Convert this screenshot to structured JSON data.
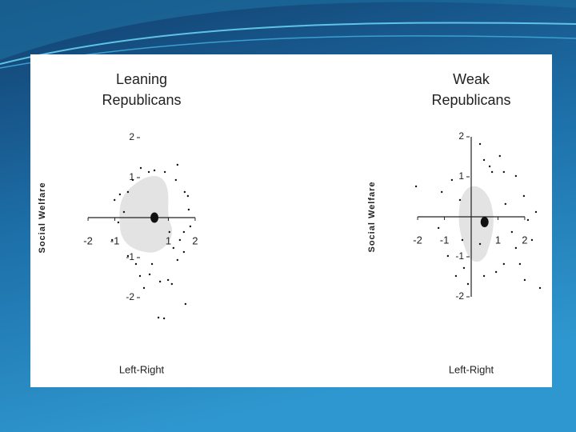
{
  "chart_data": [
    {
      "type": "scatter",
      "title": "Leaning Republicans",
      "x_label": "Left-Right",
      "y_label": "Social Welfare",
      "xlim": [
        -2.6,
        2.6
      ],
      "ylim": [
        -2.6,
        2.6
      ],
      "xticks": [
        -2,
        -1,
        1,
        2
      ],
      "yticks": [
        2,
        1,
        -1,
        -2
      ],
      "vertical_axis_line": false,
      "color": "#111111",
      "x": [
        -0.81,
        -0.51,
        0.27,
        0.48,
        0.87,
        1.34,
        1.61,
        1.76,
        1.82,
        1.43,
        1.19,
        1.58,
        -0.51,
        -0.06,
        0.3,
        0.69,
        0.99,
        1.13,
        0.09,
        1.64,
        0.63,
        0.84,
        -0.21,
        -0.66,
        -0.87,
        -1.1,
        1.58,
        1.04,
        -0.33,
        1.28,
        0.39,
        1.34,
        -0.03,
        -1.01,
        1.73
      ],
      "y": [
        0.58,
        0.64,
        1.14,
        1.18,
        1.14,
        1.32,
        0.64,
        0.2,
        -0.22,
        -0.56,
        -0.76,
        -0.86,
        -0.96,
        -1.46,
        -1.42,
        -1.6,
        -1.56,
        -1.66,
        -1.76,
        -2.16,
        -2.5,
        -2.52,
        -1.16,
        0.14,
        -0.12,
        -0.56,
        -0.36,
        -0.36,
        0.94,
        0.94,
        -1.16,
        -1.06,
        1.24,
        0.44,
        0.54
      ],
      "mean": {
        "x": 0.48,
        "y": 0
      }
    },
    {
      "type": "scatter",
      "title": "Weak Republicans",
      "x_label": "Left-Right",
      "y_label": "Social Welfare",
      "xlim": [
        -2.6,
        2.6
      ],
      "ylim": [
        -2.6,
        2.6
      ],
      "xticks": [
        -2,
        -1,
        1,
        2
      ],
      "yticks": [
        2,
        1,
        -1,
        -2
      ],
      "vertical_axis_line": true,
      "color": "#111111",
      "x": [
        -2.06,
        0.48,
        0.69,
        1.07,
        1.22,
        1.67,
        1.97,
        2.42,
        2.12,
        1.67,
        1.82,
        2.0,
        2.57,
        1.22,
        0.93,
        0.48,
        -0.12,
        -0.57,
        -0.87,
        -1.22,
        -1.1,
        -0.72,
        -0.42,
        1.28,
        1.52,
        0.33,
        -0.33,
        0.33,
        0.78,
        -0.27,
        2.27
      ],
      "y": [
        0.76,
        1.42,
        1.26,
        1.52,
        1.12,
        1.02,
        0.52,
        0.12,
        -0.08,
        -0.78,
        -1.18,
        -1.58,
        -1.78,
        -1.18,
        -1.38,
        -1.48,
        -1.68,
        -1.48,
        -0.98,
        -0.28,
        0.62,
        0.92,
        0.42,
        0.32,
        -0.38,
        -0.68,
        -0.58,
        1.82,
        1.12,
        -1.28,
        -0.58
      ],
      "mean": {
        "x": 0.5,
        "y": -0.13
      }
    }
  ]
}
